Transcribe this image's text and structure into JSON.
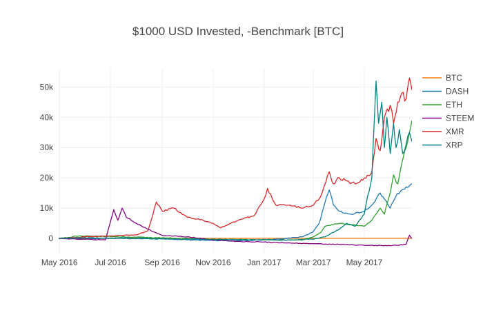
{
  "chart_data": {
    "type": "line",
    "title": "$1000 USD Invested, -Benchmark [BTC]",
    "xlabel": "",
    "ylabel": "",
    "x_tick_labels": [
      "May 2016",
      "Jul 2016",
      "Sep 2016",
      "Nov 2016",
      "Jan 2017",
      "Mar 2017",
      "May 2017"
    ],
    "y_tick_labels": [
      "0",
      "10k",
      "20k",
      "30k",
      "40k",
      "50k"
    ],
    "y_ticks": [
      0,
      10000,
      20000,
      30000,
      40000,
      50000
    ],
    "xlim": [
      "2016-04-30",
      "2017-06-27"
    ],
    "ylim": [
      -5000,
      56000
    ],
    "grid": true,
    "legend_position": "top-right",
    "series": [
      {
        "name": "BTC",
        "color": "#ff7f0e",
        "points": [
          [
            "2016-04-30",
            0
          ],
          [
            "2017-06-27",
            0
          ]
        ]
      },
      {
        "name": "DASH",
        "color": "#1f77b4",
        "points": [
          [
            "2016-04-30",
            0
          ],
          [
            "2016-06-01",
            -200
          ],
          [
            "2016-08-01",
            300
          ],
          [
            "2016-10-01",
            -500
          ],
          [
            "2016-12-01",
            -800
          ],
          [
            "2017-01-15",
            -300
          ],
          [
            "2017-02-15",
            500
          ],
          [
            "2017-02-28",
            2000
          ],
          [
            "2017-03-08",
            5000
          ],
          [
            "2017-03-15",
            12000
          ],
          [
            "2017-03-20",
            16000
          ],
          [
            "2017-03-25",
            11000
          ],
          [
            "2017-04-01",
            9000
          ],
          [
            "2017-04-15",
            8000
          ],
          [
            "2017-05-01",
            9000
          ],
          [
            "2017-05-10",
            11000
          ],
          [
            "2017-05-20",
            15000
          ],
          [
            "2017-05-25",
            13000
          ],
          [
            "2017-06-01",
            10000
          ],
          [
            "2017-06-08",
            14000
          ],
          [
            "2017-06-15",
            16000
          ],
          [
            "2017-06-20",
            17000
          ],
          [
            "2017-06-27",
            18000
          ]
        ]
      },
      {
        "name": "ETH",
        "color": "#2ca02c",
        "points": [
          [
            "2016-04-30",
            0
          ],
          [
            "2016-05-10",
            200
          ],
          [
            "2016-05-20",
            800
          ],
          [
            "2016-06-10",
            700
          ],
          [
            "2016-07-01",
            600
          ],
          [
            "2016-09-01",
            200
          ],
          [
            "2016-11-01",
            -300
          ],
          [
            "2017-01-01",
            -500
          ],
          [
            "2017-02-15",
            -600
          ],
          [
            "2017-03-01",
            500
          ],
          [
            "2017-03-10",
            2000
          ],
          [
            "2017-03-15",
            4000
          ],
          [
            "2017-04-01",
            5000
          ],
          [
            "2017-04-15",
            4500
          ],
          [
            "2017-05-01",
            4000
          ],
          [
            "2017-05-10",
            6000
          ],
          [
            "2017-05-20",
            10000
          ],
          [
            "2017-05-25",
            8000
          ],
          [
            "2017-06-01",
            15000
          ],
          [
            "2017-06-05",
            21000
          ],
          [
            "2017-06-10",
            18000
          ],
          [
            "2017-06-15",
            25000
          ],
          [
            "2017-06-20",
            30000
          ],
          [
            "2017-06-24",
            35000
          ],
          [
            "2017-06-27",
            39000
          ]
        ]
      },
      {
        "name": "STEEM",
        "color": "#800080",
        "points": [
          [
            "2016-04-30",
            0
          ],
          [
            "2016-06-01",
            -300
          ],
          [
            "2016-06-25",
            -500
          ],
          [
            "2016-07-05",
            9500
          ],
          [
            "2016-07-10",
            6000
          ],
          [
            "2016-07-15",
            10000
          ],
          [
            "2016-07-20",
            7000
          ],
          [
            "2016-08-01",
            5000
          ],
          [
            "2016-08-15",
            3000
          ],
          [
            "2016-09-01",
            1000
          ],
          [
            "2016-10-01",
            500
          ],
          [
            "2016-11-01",
            -500
          ],
          [
            "2016-12-01",
            -1000
          ],
          [
            "2017-01-01",
            -1200
          ],
          [
            "2017-02-01",
            -1500
          ],
          [
            "2017-03-01",
            -1800
          ],
          [
            "2017-04-01",
            -2000
          ],
          [
            "2017-05-01",
            -2300
          ],
          [
            "2017-06-01",
            -2400
          ],
          [
            "2017-06-20",
            -2000
          ],
          [
            "2017-06-24",
            1000
          ],
          [
            "2017-06-27",
            0
          ]
        ]
      },
      {
        "name": "XMR",
        "color": "#d62728",
        "points": [
          [
            "2016-04-30",
            0
          ],
          [
            "2016-06-01",
            500
          ],
          [
            "2016-07-01",
            800
          ],
          [
            "2016-08-01",
            1200
          ],
          [
            "2016-08-15",
            2500
          ],
          [
            "2016-08-25",
            12000
          ],
          [
            "2016-09-01",
            9000
          ],
          [
            "2016-09-15",
            10000
          ],
          [
            "2016-10-01",
            7000
          ],
          [
            "2016-10-20",
            6000
          ],
          [
            "2016-11-01",
            5000
          ],
          [
            "2016-11-10",
            3500
          ],
          [
            "2016-12-01",
            6000
          ],
          [
            "2016-12-20",
            7500
          ],
          [
            "2017-01-01",
            13000
          ],
          [
            "2017-01-05",
            16500
          ],
          [
            "2017-01-15",
            11000
          ],
          [
            "2017-02-01",
            11000
          ],
          [
            "2017-02-15",
            10000
          ],
          [
            "2017-03-01",
            11000
          ],
          [
            "2017-03-10",
            14000
          ],
          [
            "2017-03-20",
            22000
          ],
          [
            "2017-03-25",
            18000
          ],
          [
            "2017-04-01",
            20000
          ],
          [
            "2017-04-10",
            19000
          ],
          [
            "2017-04-20",
            18000
          ],
          [
            "2017-05-01",
            20000
          ],
          [
            "2017-05-10",
            22000
          ],
          [
            "2017-05-15",
            33000
          ],
          [
            "2017-05-20",
            29000
          ],
          [
            "2017-05-25",
            40000
          ],
          [
            "2017-06-01",
            44000
          ],
          [
            "2017-06-05",
            38000
          ],
          [
            "2017-06-10",
            45000
          ],
          [
            "2017-06-15",
            48000
          ],
          [
            "2017-06-20",
            46000
          ],
          [
            "2017-06-24",
            53000
          ],
          [
            "2017-06-27",
            49000
          ]
        ]
      },
      {
        "name": "XRP",
        "color": "#008080",
        "points": [
          [
            "2016-04-30",
            0
          ],
          [
            "2016-06-01",
            200
          ],
          [
            "2016-09-01",
            -200
          ],
          [
            "2016-12-01",
            -400
          ],
          [
            "2017-02-01",
            -500
          ],
          [
            "2017-03-01",
            -300
          ],
          [
            "2017-03-15",
            500
          ],
          [
            "2017-03-25",
            2000
          ],
          [
            "2017-04-01",
            3000
          ],
          [
            "2017-04-10",
            5000
          ],
          [
            "2017-04-20",
            4000
          ],
          [
            "2017-05-01",
            8000
          ],
          [
            "2017-05-05",
            14000
          ],
          [
            "2017-05-10",
            20000
          ],
          [
            "2017-05-15",
            52000
          ],
          [
            "2017-05-18",
            38000
          ],
          [
            "2017-05-22",
            45000
          ],
          [
            "2017-05-25",
            30000
          ],
          [
            "2017-05-28",
            40000
          ],
          [
            "2017-06-01",
            28000
          ],
          [
            "2017-06-05",
            38000
          ],
          [
            "2017-06-08",
            30000
          ],
          [
            "2017-06-12",
            36000
          ],
          [
            "2017-06-16",
            28000
          ],
          [
            "2017-06-20",
            31000
          ],
          [
            "2017-06-24",
            35000
          ],
          [
            "2017-06-27",
            32000
          ]
        ]
      }
    ]
  }
}
